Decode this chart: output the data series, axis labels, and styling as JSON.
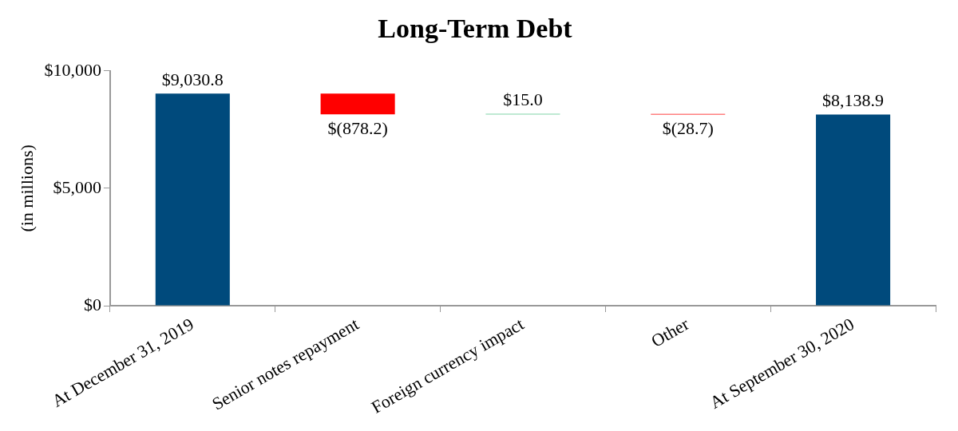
{
  "chart_data": {
    "type": "bar",
    "title": "Long-Term Debt",
    "ylabel": "(in millions)",
    "categories": [
      "At December 31, 2019",
      "Senior notes repayment",
      "Foreign currency impact",
      "Other",
      "At September 30, 2020"
    ],
    "values": [
      9030.8,
      -878.2,
      15.0,
      -28.7,
      8138.9
    ],
    "base": [
      0,
      9030.8,
      8152.6,
      8167.6,
      0
    ],
    "colors": [
      "#004a7c",
      "#ff0000",
      "#00a651",
      "#ff0000",
      "#004a7c"
    ],
    "value_labels": [
      "$9,030.8",
      "$(878.2)",
      "$15.0",
      "$(28.7)",
      "$8,138.9"
    ],
    "ylim": [
      0,
      10000
    ],
    "yticks": [
      {
        "value": 0,
        "label": "$0"
      },
      {
        "value": 5000,
        "label": "$5,000"
      },
      {
        "value": 10000,
        "label": "$10,000"
      }
    ],
    "grid": false,
    "legend": false
  }
}
